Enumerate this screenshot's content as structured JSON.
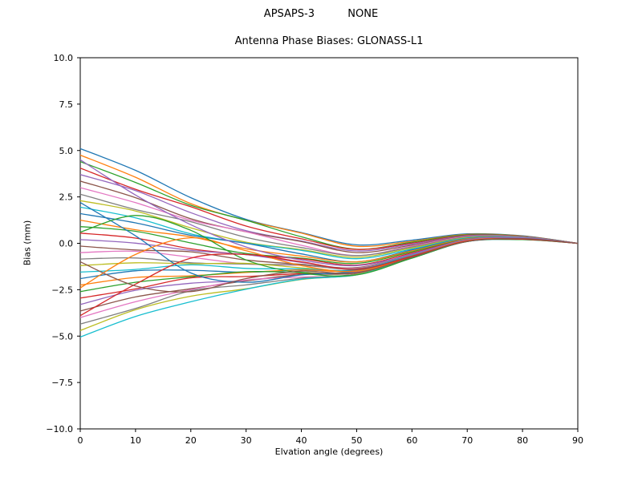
{
  "header": {
    "suptitle": "APSAPS-3          NONE",
    "title": "Antenna Phase Biases: GLONASS-L1"
  },
  "chart_data": {
    "type": "line",
    "suptitle": "APSAPS-3          NONE",
    "title": "Antenna Phase Biases: GLONASS-L1",
    "xlabel": "Elvation angle (degrees)",
    "ylabel": "Bias (mm)",
    "xlim": [
      0,
      90
    ],
    "ylim": [
      -10,
      10
    ],
    "grid": false,
    "legend": "none",
    "axes_color": "#000000",
    "background_color": "#ffffff",
    "xticks": [
      0,
      10,
      20,
      30,
      40,
      50,
      60,
      70,
      80,
      90
    ],
    "xtick_labels": [
      "0",
      "10",
      "20",
      "30",
      "40",
      "50",
      "60",
      "70",
      "80",
      "90"
    ],
    "yticks": [
      10,
      7.5,
      5,
      2.5,
      0,
      -2.5,
      -5,
      -7.5,
      -10
    ],
    "ytick_labels": [
      "10.0",
      "7.5",
      "5.0",
      "2.5",
      "0.0",
      "−2.5",
      "−5.0",
      "−7.5",
      "−10.0"
    ],
    "x": [
      0,
      10,
      20,
      30,
      40,
      50,
      60,
      70,
      80,
      90
    ],
    "series": [
      {
        "name": "line-01",
        "color": "#1f77b4",
        "values": [
          5.1,
          3.93,
          2.46,
          1.29,
          0.58,
          -0.08,
          0.17,
          0.51,
          0.4,
          0.0
        ]
      },
      {
        "name": "line-02",
        "color": "#ff7f0e",
        "values": [
          4.75,
          3.56,
          2.14,
          1.24,
          0.55,
          -0.16,
          0.11,
          0.48,
          0.39,
          0.0
        ]
      },
      {
        "name": "line-03",
        "color": "#2ca02c",
        "values": [
          4.4,
          3.28,
          2.05,
          1.24,
          0.35,
          -0.32,
          0.06,
          0.46,
          0.38,
          0.0
        ]
      },
      {
        "name": "line-04",
        "color": "#d62728",
        "values": [
          4.05,
          2.91,
          1.97,
          0.93,
          0.24,
          -0.33,
          0.01,
          0.43,
          0.37,
          0.0
        ]
      },
      {
        "name": "line-05",
        "color": "#9467bd",
        "values": [
          3.7,
          2.84,
          1.65,
          0.68,
          0.12,
          -0.41,
          -0.04,
          0.41,
          0.36,
          0.0
        ]
      },
      {
        "name": "line-06",
        "color": "#8c564b",
        "values": [
          3.35,
          2.46,
          1.32,
          0.62,
          0.09,
          -0.5,
          -0.1,
          0.38,
          0.35,
          0.0
        ]
      },
      {
        "name": "line-07",
        "color": "#e377c2",
        "values": [
          3.0,
          2.19,
          1.24,
          0.62,
          -0.11,
          -0.66,
          -0.15,
          0.36,
          0.34,
          0.0
        ]
      },
      {
        "name": "line-08",
        "color": "#7f7f7f",
        "values": [
          2.65,
          1.82,
          1.16,
          0.32,
          -0.23,
          -0.66,
          -0.2,
          0.34,
          0.33,
          0.0
        ]
      },
      {
        "name": "line-09",
        "color": "#bcbd22",
        "values": [
          2.3,
          1.74,
          0.83,
          0.06,
          -0.34,
          -0.75,
          -0.25,
          0.31,
          0.32,
          0.0
        ]
      },
      {
        "name": "line-10",
        "color": "#17becf",
        "values": [
          1.95,
          1.37,
          0.51,
          0.01,
          -0.38,
          -0.83,
          -0.31,
          0.29,
          0.31,
          0.0
        ]
      },
      {
        "name": "line-11",
        "color": "#1f77b4",
        "values": [
          1.6,
          1.1,
          0.43,
          0.0,
          -0.57,
          -1.0,
          -0.36,
          0.26,
          0.3,
          0.0
        ]
      },
      {
        "name": "line-12",
        "color": "#ff7f0e",
        "values": [
          1.25,
          0.73,
          0.35,
          -0.3,
          -0.69,
          -1.0,
          -0.41,
          0.24,
          0.29,
          0.0
        ]
      },
      {
        "name": "line-13",
        "color": "#2ca02c",
        "values": [
          0.9,
          0.65,
          0.02,
          -0.55,
          -0.8,
          -1.08,
          -0.46,
          0.21,
          0.28,
          0.0
        ]
      },
      {
        "name": "line-14",
        "color": "#d62728",
        "values": [
          0.55,
          0.28,
          -0.3,
          -0.61,
          -0.84,
          -1.17,
          -0.52,
          0.19,
          0.27,
          0.0
        ]
      },
      {
        "name": "line-15",
        "color": "#9467bd",
        "values": [
          0.2,
          0.01,
          -0.38,
          -0.61,
          -1.03,
          -1.33,
          -0.57,
          0.16,
          0.26,
          0.0
        ]
      },
      {
        "name": "line-16",
        "color": "#8c564b",
        "values": [
          -0.15,
          -0.36,
          -0.46,
          -0.9,
          -1.13,
          -1.31,
          -0.61,
          0.15,
          0.25,
          0.0
        ]
      },
      {
        "name": "line-17",
        "color": "#e377c2",
        "values": [
          -0.5,
          -0.43,
          -0.75,
          -1.11,
          -1.19,
          -1.34,
          -0.62,
          0.14,
          0.25,
          0.0
        ]
      },
      {
        "name": "line-18",
        "color": "#7f7f7f",
        "values": [
          -0.85,
          -0.79,
          -1.05,
          -1.12,
          -1.17,
          -1.37,
          -0.63,
          0.14,
          0.25,
          0.0
        ]
      },
      {
        "name": "line-19",
        "color": "#bcbd22",
        "values": [
          -1.2,
          -1.05,
          -1.1,
          -1.08,
          -1.32,
          -1.48,
          -0.65,
          0.14,
          0.25,
          0.0
        ]
      },
      {
        "name": "line-20",
        "color": "#17becf",
        "values": [
          -1.55,
          -1.41,
          -1.16,
          -1.35,
          -1.38,
          -1.42,
          -0.66,
          0.13,
          0.25,
          0.0
        ]
      },
      {
        "name": "line-21",
        "color": "#1f77b4",
        "values": [
          -1.9,
          -1.48,
          -1.45,
          -1.56,
          -1.44,
          -1.45,
          -0.68,
          0.13,
          0.25,
          0.0
        ]
      },
      {
        "name": "line-22",
        "color": "#ff7f0e",
        "values": [
          -2.25,
          -1.84,
          -1.75,
          -1.57,
          -1.43,
          -1.48,
          -0.69,
          0.13,
          0.25,
          0.0
        ]
      },
      {
        "name": "line-23",
        "color": "#2ca02c",
        "values": [
          -2.6,
          -2.1,
          -1.8,
          -1.53,
          -1.57,
          -1.59,
          -0.7,
          0.12,
          0.25,
          0.0
        ]
      },
      {
        "name": "line-24",
        "color": "#d62728",
        "values": [
          -2.95,
          -2.46,
          -1.86,
          -1.79,
          -1.63,
          -1.54,
          -0.72,
          0.12,
          0.25,
          0.0
        ]
      },
      {
        "name": "line-25",
        "color": "#9467bd",
        "values": [
          -3.3,
          -2.53,
          -2.15,
          -2.01,
          -1.69,
          -1.56,
          -0.73,
          0.12,
          0.25,
          0.0
        ]
      },
      {
        "name": "line-26",
        "color": "#8c564b",
        "values": [
          -3.65,
          -2.89,
          -2.45,
          -2.02,
          -1.68,
          -1.59,
          -0.75,
          0.11,
          0.25,
          0.0
        ]
      },
      {
        "name": "line-27",
        "color": "#e377c2",
        "values": [
          -4.0,
          -3.15,
          -2.5,
          -1.98,
          -1.82,
          -1.7,
          -0.76,
          0.11,
          0.25,
          0.0
        ]
      },
      {
        "name": "line-28",
        "color": "#7f7f7f",
        "values": [
          -4.35,
          -3.51,
          -2.56,
          -2.24,
          -1.88,
          -1.65,
          -0.77,
          0.11,
          0.25,
          0.0
        ]
      },
      {
        "name": "line-29",
        "color": "#bcbd22",
        "values": [
          -4.7,
          -3.58,
          -2.85,
          -2.45,
          -1.95,
          -1.68,
          -0.79,
          0.1,
          0.25,
          0.0
        ]
      },
      {
        "name": "line-30",
        "color": "#17becf",
        "values": [
          -5.05,
          -3.94,
          -3.15,
          -2.47,
          -1.93,
          -1.7,
          -0.8,
          0.1,
          0.25,
          0.0
        ]
      },
      {
        "name": "line-31",
        "color": "#1f77b4",
        "values": [
          2.2,
          0.4,
          -1.6,
          -2.1,
          -1.7,
          -1.5,
          -0.7,
          0.1,
          0.2,
          0.0
        ]
      },
      {
        "name": "line-32",
        "color": "#ff7f0e",
        "values": [
          -2.4,
          -0.6,
          0.3,
          -0.4,
          -1.2,
          -1.5,
          -0.7,
          0.15,
          0.25,
          0.0
        ]
      },
      {
        "name": "line-33",
        "color": "#2ca02c",
        "values": [
          0.6,
          1.5,
          0.7,
          -0.9,
          -1.6,
          -1.7,
          -0.8,
          0.1,
          0.2,
          0.0
        ]
      },
      {
        "name": "line-34",
        "color": "#d62728",
        "values": [
          -3.9,
          -2.2,
          -0.8,
          -0.6,
          -1.0,
          -1.4,
          -0.7,
          0.12,
          0.22,
          0.0
        ]
      },
      {
        "name": "line-35",
        "color": "#9467bd",
        "values": [
          4.5,
          2.6,
          1.0,
          -0.2,
          -0.9,
          -1.2,
          -0.6,
          0.2,
          0.3,
          0.0
        ]
      },
      {
        "name": "line-36",
        "color": "#8c564b",
        "values": [
          -1.0,
          -2.3,
          -2.6,
          -1.9,
          -1.5,
          -1.6,
          -0.75,
          0.1,
          0.25,
          0.0
        ]
      }
    ]
  }
}
